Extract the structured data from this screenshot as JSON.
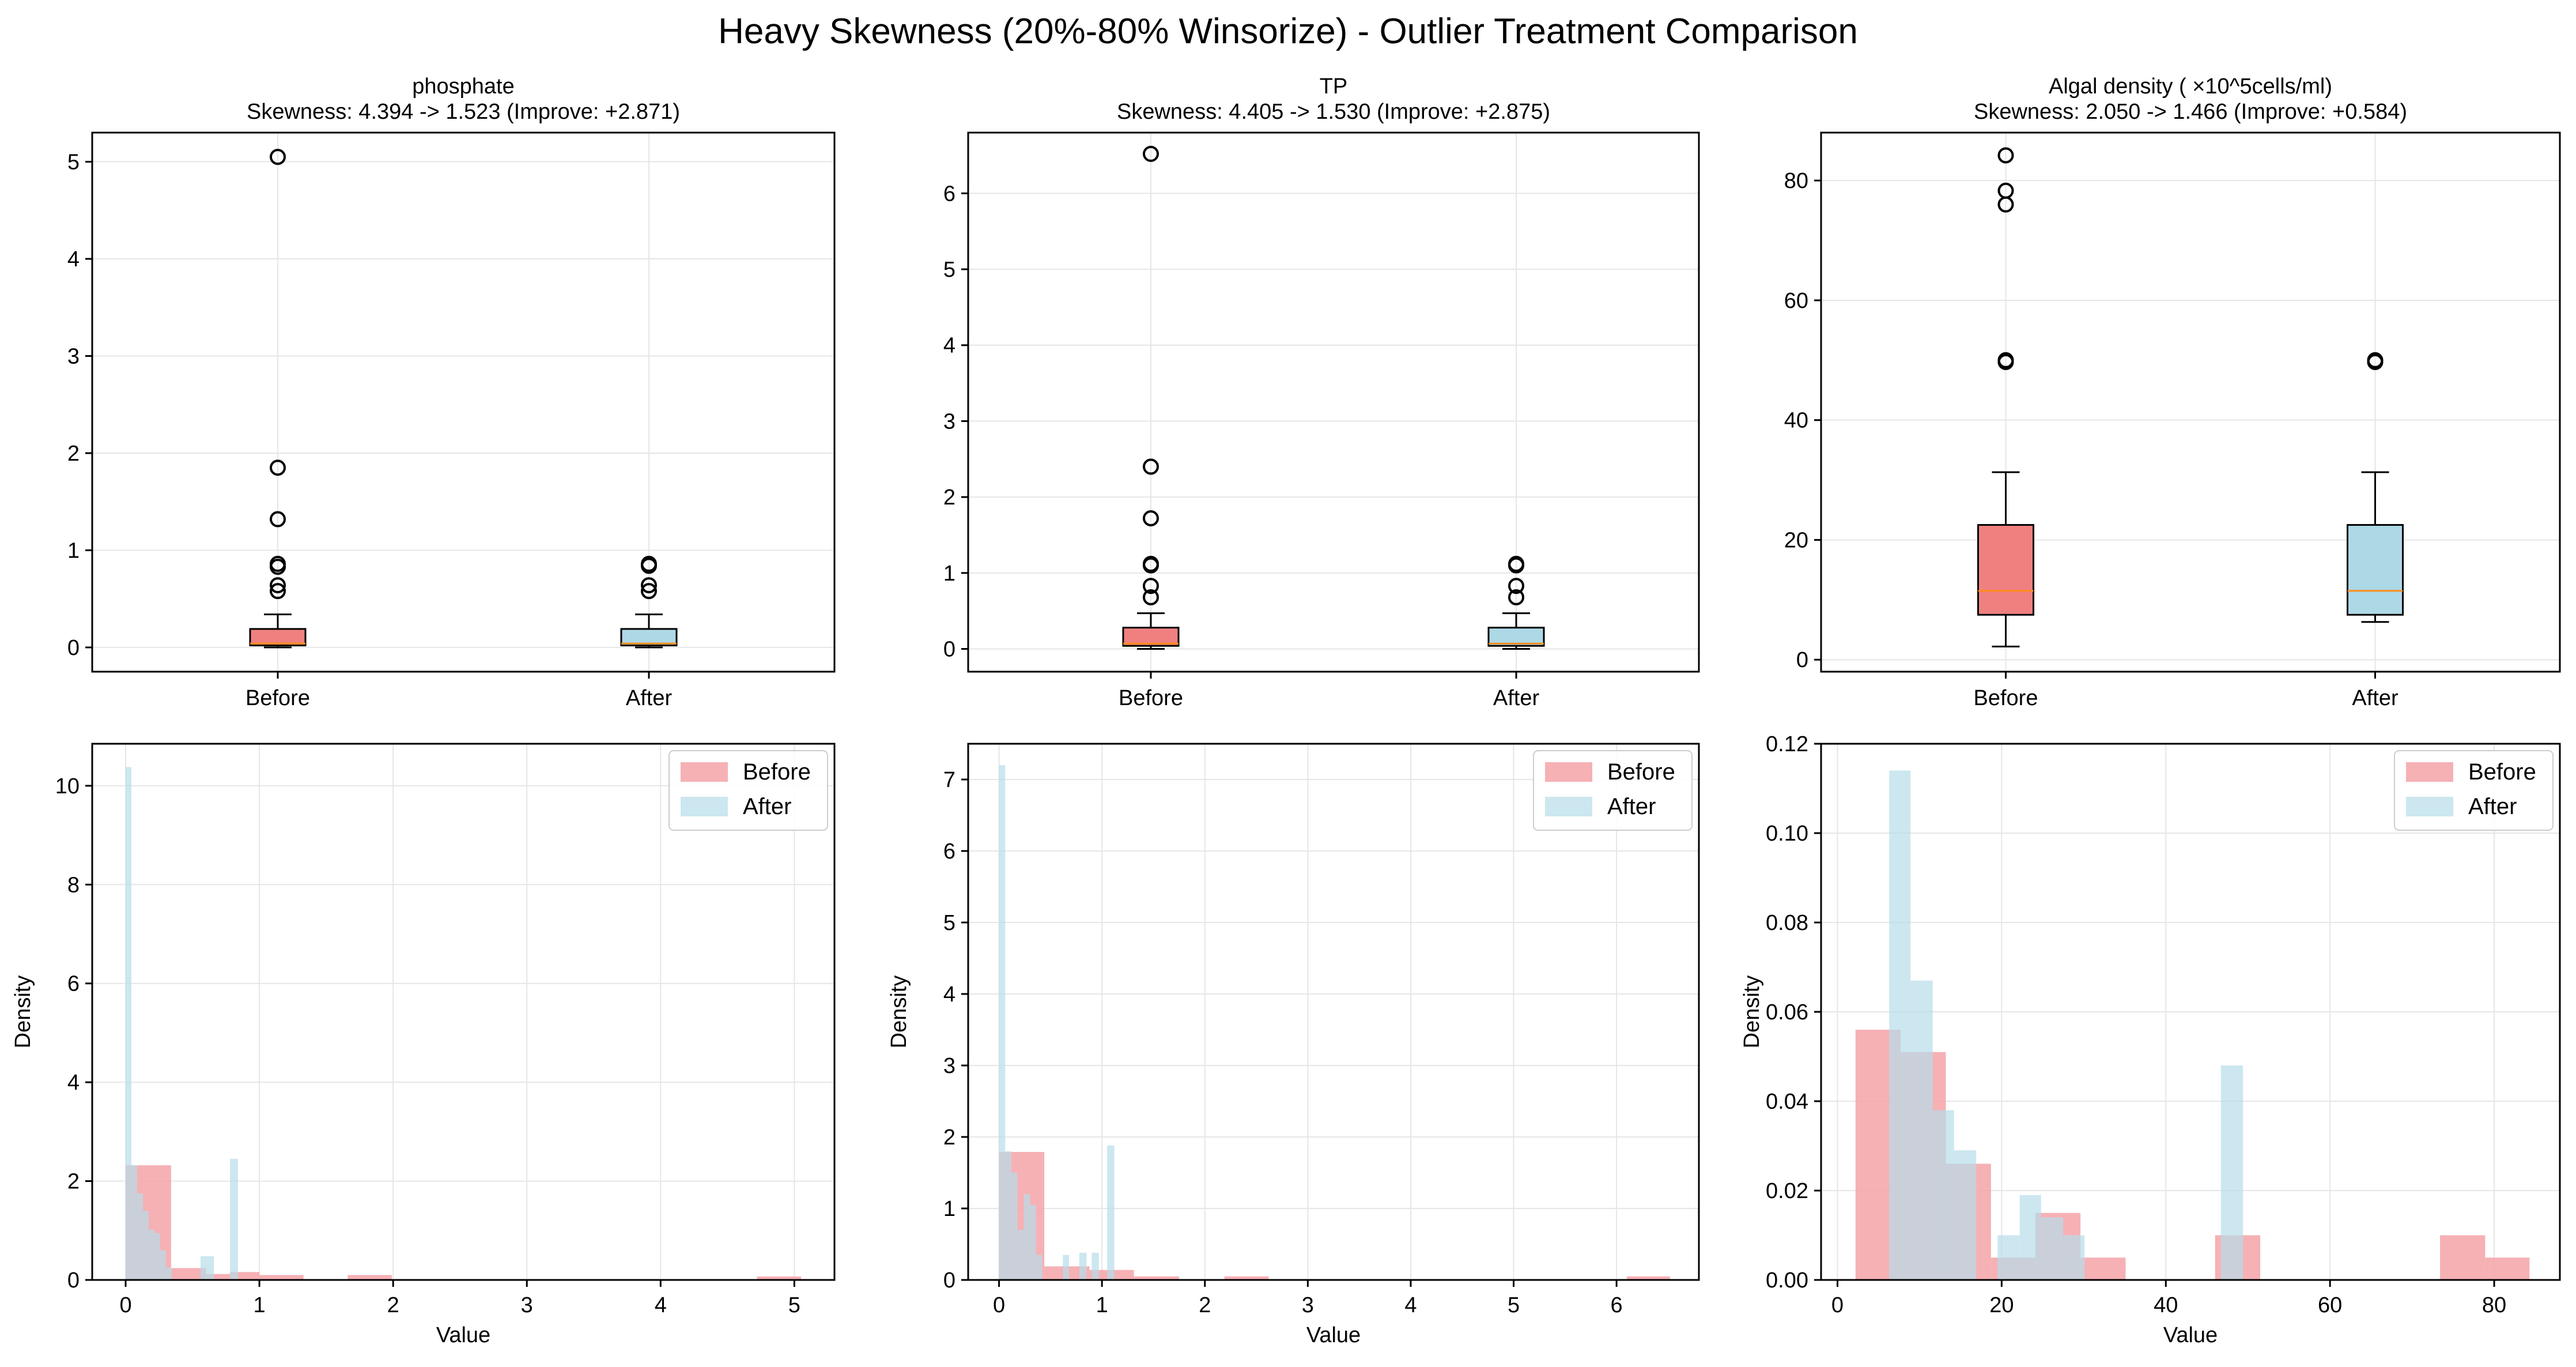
{
  "figure_title": "Heavy Skewness (20%-80% Winsorize) - Outlier Treatment Comparison",
  "colors": {
    "before_box": "#f08080",
    "after_box": "#add8e6",
    "median": "#ff8c1a",
    "before_hist": "#f4a3a8",
    "after_hist": "#b7dde9",
    "grid": "#e6e6e6"
  },
  "chart_data": [
    {
      "type": "box",
      "title": "phosphate",
      "subtitle": "Skewness: 4.394 -> 1.523 (Improve: +2.871)",
      "categories": [
        "Before",
        "After"
      ],
      "ylim": [
        -0.25,
        5.3
      ],
      "yticks": [
        0,
        1,
        2,
        3,
        4,
        5
      ],
      "grid": true,
      "boxes": [
        {
          "name": "Before",
          "whisker_low": 0.0,
          "q1": 0.02,
          "median": 0.04,
          "q3": 0.19,
          "whisker_high": 0.34,
          "fliers": [
            5.05,
            1.85,
            1.32,
            0.86,
            0.83,
            0.64,
            0.58
          ]
        },
        {
          "name": "After",
          "whisker_low": 0.0,
          "q1": 0.02,
          "median": 0.04,
          "q3": 0.19,
          "whisker_high": 0.34,
          "fliers": [
            0.86,
            0.84,
            0.64,
            0.58
          ]
        }
      ]
    },
    {
      "type": "box",
      "title": "TP",
      "subtitle": "Skewness: 4.405 -> 1.530 (Improve: +2.875)",
      "categories": [
        "Before",
        "After"
      ],
      "ylim": [
        -0.3,
        6.8
      ],
      "yticks": [
        0,
        1,
        2,
        3,
        4,
        5,
        6
      ],
      "grid": true,
      "boxes": [
        {
          "name": "Before",
          "whisker_low": 0.0,
          "q1": 0.04,
          "median": 0.07,
          "q3": 0.28,
          "whisker_high": 0.47,
          "fliers": [
            6.52,
            2.4,
            1.72,
            1.12,
            1.1,
            0.83,
            0.68
          ]
        },
        {
          "name": "After",
          "whisker_low": 0.0,
          "q1": 0.04,
          "median": 0.07,
          "q3": 0.28,
          "whisker_high": 0.47,
          "fliers": [
            1.12,
            1.1,
            0.83,
            0.68
          ]
        }
      ]
    },
    {
      "type": "box",
      "title": "Algal density ( ×10^5cells/ml)",
      "subtitle": "Skewness: 2.050 -> 1.466 (Improve: +0.584)",
      "categories": [
        "Before",
        "After"
      ],
      "ylim": [
        -2,
        88
      ],
      "yticks": [
        0,
        20,
        40,
        60,
        80
      ],
      "grid": true,
      "boxes": [
        {
          "name": "Before",
          "whisker_low": 2.2,
          "q1": 7.5,
          "median": 11.5,
          "q3": 22.5,
          "whisker_high": 31.3,
          "fliers": [
            84.2,
            78.3,
            76.0,
            50.0,
            49.7
          ]
        },
        {
          "name": "After",
          "whisker_low": 6.3,
          "q1": 7.5,
          "median": 11.5,
          "q3": 22.5,
          "whisker_high": 31.3,
          "fliers": [
            50.0,
            49.7
          ]
        }
      ]
    },
    {
      "type": "histogram",
      "xlabel": "Value",
      "ylabel": "Density",
      "xlim": [
        -0.25,
        5.3
      ],
      "ylim": [
        0,
        10.85
      ],
      "xticks": [
        0,
        1,
        2,
        3,
        4,
        5
      ],
      "yticks": [
        0,
        2,
        4,
        6,
        8,
        10
      ],
      "legend": "top-right",
      "grid": true,
      "series": [
        {
          "name": "Before",
          "bins": [
            {
              "x0": 0.0,
              "x1": 0.34,
              "y": 2.32
            },
            {
              "x0": 0.34,
              "x1": 0.6,
              "y": 0.24
            },
            {
              "x0": 0.6,
              "x1": 0.78,
              "y": 0.12
            },
            {
              "x0": 0.78,
              "x1": 1.0,
              "y": 0.16
            },
            {
              "x0": 1.0,
              "x1": 1.33,
              "y": 0.1
            },
            {
              "x0": 1.66,
              "x1": 1.99,
              "y": 0.1
            },
            {
              "x0": 4.72,
              "x1": 5.05,
              "y": 0.07
            }
          ]
        },
        {
          "name": "After",
          "bins": [
            {
              "x0": 0.0,
              "x1": 0.043,
              "y": 10.38
            },
            {
              "x0": 0.043,
              "x1": 0.086,
              "y": 2.32
            },
            {
              "x0": 0.086,
              "x1": 0.129,
              "y": 1.75
            },
            {
              "x0": 0.129,
              "x1": 0.172,
              "y": 1.4
            },
            {
              "x0": 0.172,
              "x1": 0.215,
              "y": 1.02
            },
            {
              "x0": 0.215,
              "x1": 0.258,
              "y": 0.95
            },
            {
              "x0": 0.258,
              "x1": 0.301,
              "y": 0.6
            },
            {
              "x0": 0.301,
              "x1": 0.344,
              "y": 0.25
            },
            {
              "x0": 0.56,
              "x1": 0.66,
              "y": 0.48
            },
            {
              "x0": 0.78,
              "x1": 0.84,
              "y": 2.45
            }
          ]
        }
      ]
    },
    {
      "type": "histogram",
      "xlabel": "Value",
      "ylabel": "Density",
      "xlim": [
        -0.3,
        6.8
      ],
      "ylim": [
        0,
        7.5
      ],
      "xticks": [
        0,
        1,
        2,
        3,
        4,
        5,
        6
      ],
      "yticks": [
        0,
        1,
        2,
        3,
        4,
        5,
        6,
        7
      ],
      "legend": "top-right",
      "grid": true,
      "series": [
        {
          "name": "Before",
          "bins": [
            {
              "x0": 0.0,
              "x1": 0.44,
              "y": 1.79
            },
            {
              "x0": 0.44,
              "x1": 0.88,
              "y": 0.19
            },
            {
              "x0": 0.88,
              "x1": 1.31,
              "y": 0.14
            },
            {
              "x0": 1.31,
              "x1": 1.75,
              "y": 0.05
            },
            {
              "x0": 2.19,
              "x1": 2.62,
              "y": 0.05
            },
            {
              "x0": 6.1,
              "x1": 6.52,
              "y": 0.05
            }
          ]
        },
        {
          "name": "After",
          "bins": [
            {
              "x0": 0.0,
              "x1": 0.06,
              "y": 7.2
            },
            {
              "x0": 0.06,
              "x1": 0.12,
              "y": 1.8
            },
            {
              "x0": 0.12,
              "x1": 0.18,
              "y": 1.5
            },
            {
              "x0": 0.18,
              "x1": 0.24,
              "y": 0.7
            },
            {
              "x0": 0.24,
              "x1": 0.3,
              "y": 1.2
            },
            {
              "x0": 0.3,
              "x1": 0.36,
              "y": 1.05
            },
            {
              "x0": 0.36,
              "x1": 0.42,
              "y": 0.35
            },
            {
              "x0": 0.62,
              "x1": 0.68,
              "y": 0.35
            },
            {
              "x0": 0.78,
              "x1": 0.85,
              "y": 0.38
            },
            {
              "x0": 0.9,
              "x1": 0.97,
              "y": 0.38
            },
            {
              "x0": 1.05,
              "x1": 1.12,
              "y": 1.88
            }
          ]
        }
      ]
    },
    {
      "type": "histogram",
      "xlabel": "Value",
      "ylabel": "Density",
      "xlim": [
        -2,
        88
      ],
      "ylim": [
        0,
        0.12
      ],
      "xticks": [
        0,
        20,
        40,
        60,
        80
      ],
      "yticks": [
        0.0,
        0.02,
        0.04,
        0.06,
        0.08,
        0.1,
        0.12
      ],
      "legend": "top-right",
      "grid": true,
      "series": [
        {
          "name": "Before",
          "bins": [
            {
              "x0": 2.2,
              "x1": 7.7,
              "y": 0.056
            },
            {
              "x0": 7.7,
              "x1": 13.2,
              "y": 0.051
            },
            {
              "x0": 13.2,
              "x1": 18.7,
              "y": 0.026
            },
            {
              "x0": 18.7,
              "x1": 24.1,
              "y": 0.005
            },
            {
              "x0": 24.1,
              "x1": 29.6,
              "y": 0.015
            },
            {
              "x0": 29.6,
              "x1": 35.1,
              "y": 0.005
            },
            {
              "x0": 46.0,
              "x1": 51.5,
              "y": 0.01
            },
            {
              "x0": 73.4,
              "x1": 78.9,
              "y": 0.01
            },
            {
              "x0": 78.9,
              "x1": 84.3,
              "y": 0.005
            }
          ]
        },
        {
          "name": "After",
          "bins": [
            {
              "x0": 6.3,
              "x1": 8.9,
              "y": 0.114
            },
            {
              "x0": 8.9,
              "x1": 11.6,
              "y": 0.067
            },
            {
              "x0": 11.6,
              "x1": 14.2,
              "y": 0.038
            },
            {
              "x0": 14.2,
              "x1": 16.9,
              "y": 0.029
            },
            {
              "x0": 19.5,
              "x1": 22.2,
              "y": 0.01
            },
            {
              "x0": 22.2,
              "x1": 24.8,
              "y": 0.019
            },
            {
              "x0": 24.8,
              "x1": 27.5,
              "y": 0.014
            },
            {
              "x0": 27.5,
              "x1": 30.1,
              "y": 0.01
            },
            {
              "x0": 46.7,
              "x1": 49.4,
              "y": 0.048
            }
          ]
        }
      ]
    }
  ]
}
